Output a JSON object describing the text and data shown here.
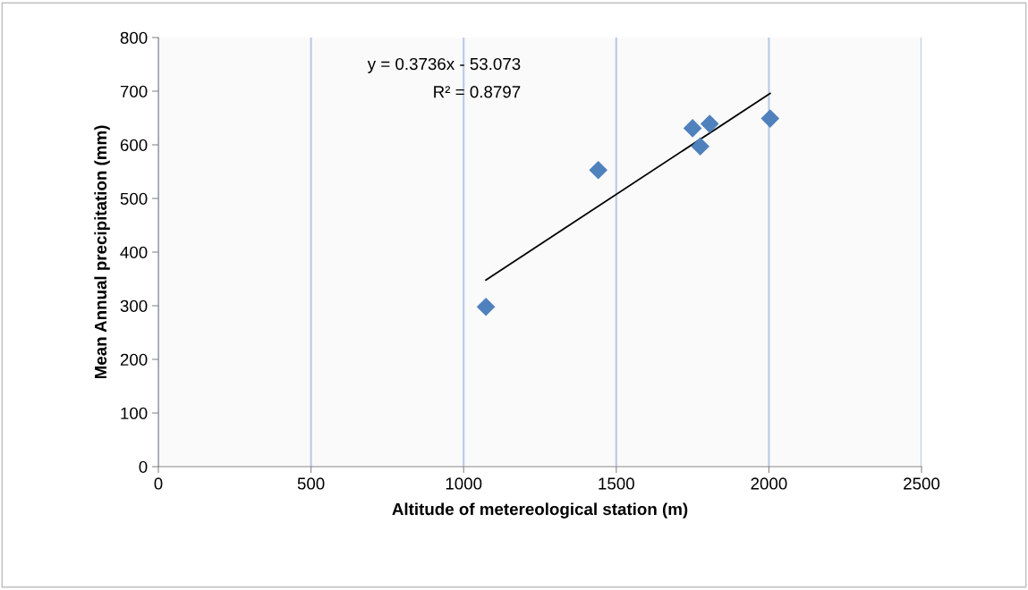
{
  "chart_data": {
    "type": "scatter",
    "xlabel": "Altitude of metereological station (m)",
    "ylabel": "Mean Annual precipitation (mm)",
    "xlim": [
      0,
      2500
    ],
    "xticks": [
      0,
      500,
      1000,
      1500,
      2000,
      2500
    ],
    "ylim": [
      0,
      800
    ],
    "yticks": [
      0,
      100,
      200,
      300,
      400,
      500,
      600,
      700,
      800
    ],
    "grid": "x",
    "marker": "diamond",
    "legend": false,
    "series": [
      {
        "color": "#4f81bd",
        "x": [
          1073,
          1441,
          1750,
          1775,
          1806,
          2004
        ],
        "values": [
          298,
          553,
          631,
          597,
          639,
          649
        ]
      },
      {
        "type": "line",
        "color": "#000000",
        "marker": "none",
        "line_style": "solid",
        "x": [
          1073,
          2004
        ],
        "values": [
          348,
          696
        ]
      }
    ],
    "annotations": [
      "y = 0.3736x - 53.073",
      "R² = 0.8797"
    ]
  }
}
